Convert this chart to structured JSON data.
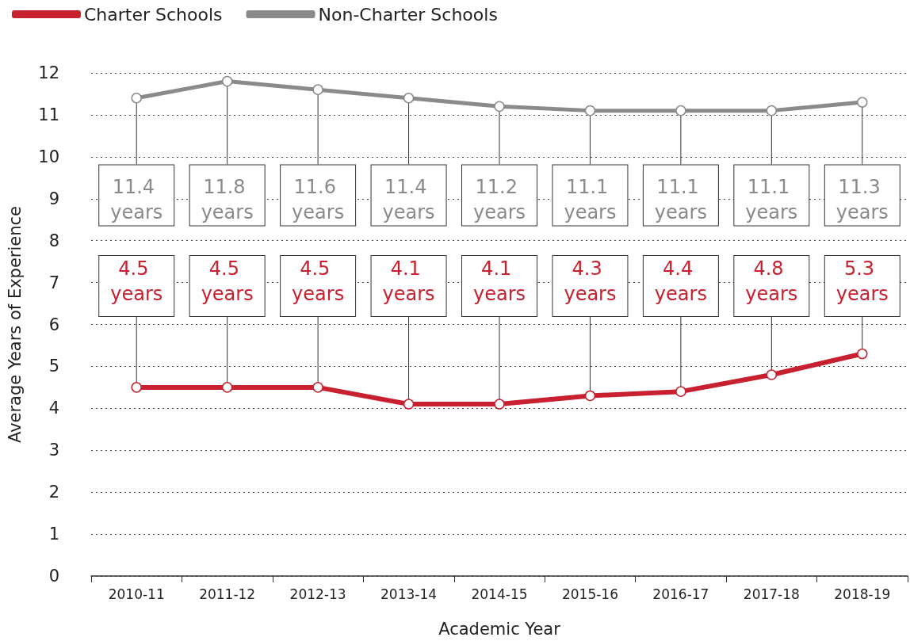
{
  "chart_data": {
    "type": "line",
    "xlabel": "Academic Year",
    "ylabel": "Average Years of Experience",
    "categories": [
      "2010-11",
      "2011-12",
      "2012-13",
      "2013-14",
      "2014-15",
      "2015-16",
      "2016-17",
      "2017-18",
      "2018-19"
    ],
    "series": [
      {
        "name": "Charter Schools",
        "color": "#c8202f",
        "values": [
          4.5,
          4.5,
          4.5,
          4.1,
          4.1,
          4.3,
          4.4,
          4.8,
          5.3
        ],
        "value_labels": [
          "4.5 years",
          "4.5 years",
          "4.5 years",
          "4.1 years",
          "4.1 years",
          "4.3 years",
          "4.4 years",
          "4.8 years",
          "5.3 years"
        ]
      },
      {
        "name": "Non-Charter Schools",
        "color": "#8a8a8c",
        "values": [
          11.4,
          11.8,
          11.6,
          11.4,
          11.2,
          11.1,
          11.1,
          11.1,
          11.3
        ],
        "value_labels": [
          "11.4 years",
          "11.8 years",
          "11.6 years",
          "11.4 years",
          "11.2 years",
          "11.1 years",
          "11.1 years",
          "11.1 years",
          "11.3 years"
        ]
      }
    ],
    "ylim": [
      0,
      12
    ],
    "yticks": [
      0,
      1,
      2,
      3,
      4,
      5,
      6,
      7,
      8,
      9,
      10,
      11,
      12
    ],
    "grid": "y",
    "legend": "top left",
    "marker": "circle",
    "line_style": "solid"
  }
}
